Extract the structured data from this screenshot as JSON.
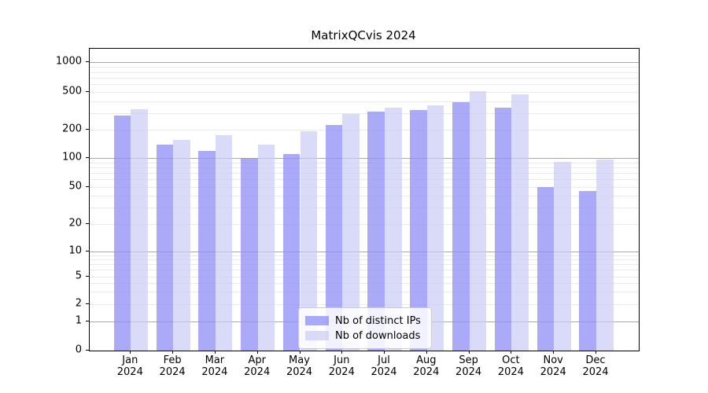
{
  "title": "MatrixQCvis 2024",
  "legend": {
    "items": [
      {
        "label": "Nb of distinct IPs",
        "series": "distinct_ips"
      },
      {
        "label": "Nb of downloads",
        "series": "downloads"
      }
    ]
  },
  "colors": {
    "distinct_ips": "rgba(144,144,247,0.77)",
    "downloads": "rgba(202,202,247,0.70)",
    "grid_major": "#a8a8a8",
    "grid_minor": "#e9e9e9",
    "spine": "#000000"
  },
  "y_axis": {
    "tick_labels": [
      "0",
      "1",
      "2",
      "5",
      "10",
      "20",
      "50",
      "100",
      "200",
      "500",
      "1000"
    ],
    "tick_values": [
      0,
      1,
      2,
      5,
      10,
      20,
      50,
      100,
      200,
      500,
      1000
    ],
    "scale": "symlog"
  },
  "x_axis": {
    "months": [
      "Jan",
      "Feb",
      "Mar",
      "Apr",
      "May",
      "Jun",
      "Jul",
      "Aug",
      "Sep",
      "Oct",
      "Nov",
      "Dec"
    ],
    "year": "2024"
  },
  "chart_data": {
    "type": "bar",
    "title": "MatrixQCvis 2024",
    "categories": [
      "Jan 2024",
      "Feb 2024",
      "Mar 2024",
      "Apr 2024",
      "May 2024",
      "Jun 2024",
      "Jul 2024",
      "Aug 2024",
      "Sep 2024",
      "Oct 2024",
      "Nov 2024",
      "Dec 2024"
    ],
    "series": [
      {
        "name": "Nb of distinct IPs",
        "values": [
          280,
          140,
          120,
          100,
          110,
          225,
          310,
          320,
          390,
          340,
          50,
          45
        ]
      },
      {
        "name": "Nb of downloads",
        "values": [
          330,
          155,
          175,
          140,
          190,
          295,
          345,
          360,
          515,
          475,
          92,
          96
        ]
      }
    ],
    "yscale": "symlog",
    "ylim": [
      0,
      1300
    ],
    "ytick_values": [
      0,
      1,
      2,
      5,
      10,
      20,
      50,
      100,
      200,
      500,
      1000
    ],
    "grid": true,
    "legend_position": "lower center"
  }
}
